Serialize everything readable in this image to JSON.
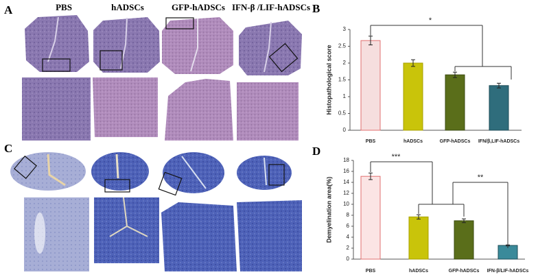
{
  "panel_labels": [
    "A",
    "B",
    "C",
    "D"
  ],
  "image_columns": [
    "PBS",
    "hADSCs",
    "GFP-hADSCs",
    "IFN-β /LIF-hADSCs"
  ],
  "chart_data": [
    {
      "type": "bar",
      "ylabel": "Histopathological score",
      "categories": [
        "PBS",
        "hADSCs",
        "GFP-hADSCs",
        "IFN/β,LIF-hADSCs"
      ],
      "values": [
        2.67,
        2.0,
        1.65,
        1.33
      ],
      "errors": [
        0.13,
        0.1,
        0.08,
        0.07
      ],
      "colors": [
        "#f6dede",
        "#c9c40a",
        "#5a6e1a",
        "#2f6d7c"
      ],
      "edge_colors": [
        "#e07070",
        "#a8a000",
        "#3a4a10",
        "#1f4d58"
      ],
      "ylim": [
        0,
        3
      ],
      "yticks": [
        0,
        0.5,
        1,
        1.5,
        2,
        2.5,
        3
      ],
      "annotations": [
        "*"
      ]
    },
    {
      "type": "bar",
      "ylabel": "Demyelination area(%)",
      "categories": [
        "PBS",
        "hADSCs",
        "GFP-hADSCs",
        "IFN-β/LIF-hADSCs"
      ],
      "values": [
        15.1,
        7.7,
        7.0,
        2.5
      ],
      "errors": [
        0.6,
        0.4,
        0.35,
        0.1
      ],
      "colors": [
        "#fbe4e4",
        "#c9c40a",
        "#5a6e1a",
        "#3a8a9a"
      ],
      "edge_colors": [
        "#e07070",
        "#a8a000",
        "#3a4a10",
        "#1f4d58"
      ],
      "ylim": [
        0,
        18
      ],
      "yticks": [
        0,
        2,
        4,
        6,
        8,
        10,
        12,
        14,
        16,
        18
      ],
      "annotations": [
        "***",
        "**"
      ]
    }
  ]
}
